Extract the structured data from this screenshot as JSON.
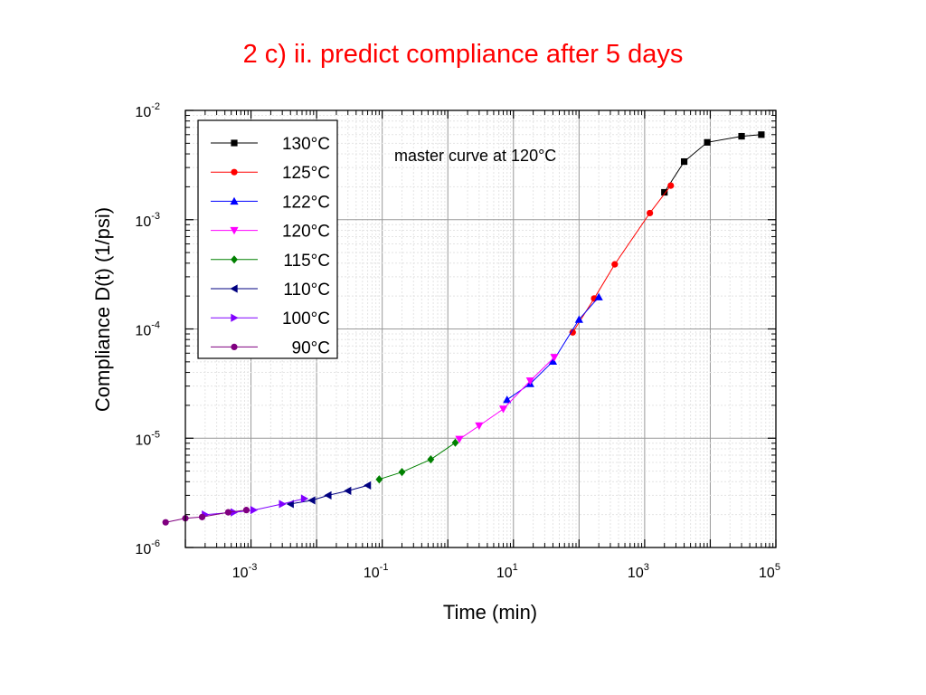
{
  "slide": {
    "title": "2 c) ii. predict compliance after 5 days"
  },
  "chart_data": {
    "type": "line",
    "title": "",
    "xlabel": "Time (min)",
    "ylabel": "Compliance D(t) (1/psi)",
    "xscale": "log",
    "yscale": "log",
    "xlim": [
      0.0001,
      100000
    ],
    "ylim": [
      1e-06,
      0.01
    ],
    "x_ticks": [
      {
        "base": "10",
        "exp": "-3",
        "value": 0.001
      },
      {
        "base": "10",
        "exp": "-1",
        "value": 0.1
      },
      {
        "base": "10",
        "exp": "1",
        "value": 10
      },
      {
        "base": "10",
        "exp": "3",
        "value": 1000
      },
      {
        "base": "10",
        "exp": "5",
        "value": 100000
      }
    ],
    "y_ticks": [
      {
        "base": "10",
        "exp": "-6",
        "value": 1e-06
      },
      {
        "base": "10",
        "exp": "-5",
        "value": 1e-05
      },
      {
        "base": "10",
        "exp": "-4",
        "value": 0.0001
      },
      {
        "base": "10",
        "exp": "-3",
        "value": 0.001
      },
      {
        "base": "10",
        "exp": "-2",
        "value": 0.01
      }
    ],
    "grid": true,
    "legend_position": "top-left",
    "annotation": "master curve at 120°C",
    "series": [
      {
        "name": "130°C",
        "color": "#000000",
        "marker": "square",
        "points": [
          [
            2000,
            0.00178
          ],
          [
            4000,
            0.0034
          ],
          [
            9000,
            0.0051
          ],
          [
            30000,
            0.0058
          ],
          [
            60000,
            0.006
          ]
        ]
      },
      {
        "name": "125°C",
        "color": "#ff0000",
        "marker": "circle",
        "points": [
          [
            80,
            9.3e-05
          ],
          [
            170,
            0.00019
          ],
          [
            350,
            0.00039
          ],
          [
            1200,
            0.00115
          ],
          [
            2500,
            0.00205
          ]
        ]
      },
      {
        "name": "122°C",
        "color": "#0000ff",
        "marker": "triangle-up",
        "points": [
          [
            8,
            2.25e-05
          ],
          [
            18,
            3.15e-05
          ],
          [
            40,
            5.05e-05
          ],
          [
            100,
            0.000122
          ],
          [
            200,
            0.000196
          ]
        ]
      },
      {
        "name": "120°C",
        "color": "#ff00ff",
        "marker": "triangle-down",
        "points": [
          [
            1.5,
            9.8e-06
          ],
          [
            3,
            1.3e-05
          ],
          [
            7,
            1.85e-05
          ],
          [
            18,
            3.35e-05
          ],
          [
            42,
            5.5e-05
          ]
        ]
      },
      {
        "name": "115°C",
        "color": "#008000",
        "marker": "diamond",
        "points": [
          [
            0.09,
            4.2e-06
          ],
          [
            0.2,
            4.9e-06
          ],
          [
            0.55,
            6.4e-06
          ],
          [
            1.3,
            9.1e-06
          ]
        ]
      },
      {
        "name": "110°C",
        "color": "#000080",
        "marker": "triangle-left",
        "points": [
          [
            0.004,
            2.5e-06
          ],
          [
            0.0085,
            2.7e-06
          ],
          [
            0.015,
            3e-06
          ],
          [
            0.03,
            3.3e-06
          ],
          [
            0.06,
            3.7e-06
          ]
        ]
      },
      {
        "name": "100°C",
        "color": "#8000ff",
        "marker": "triangle-right",
        "points": [
          [
            0.0002,
            2e-06
          ],
          [
            0.00055,
            2.1e-06
          ],
          [
            0.0011,
            2.2e-06
          ],
          [
            0.003,
            2.5e-06
          ],
          [
            0.0065,
            2.8e-06
          ]
        ]
      },
      {
        "name": "90°C",
        "color": "#800080",
        "marker": "circle",
        "points": [
          [
            5e-05,
            1.7e-06
          ],
          [
            0.0001,
            1.85e-06
          ],
          [
            0.00018,
            1.9e-06
          ],
          [
            0.00045,
            2.1e-06
          ],
          [
            0.00085,
            2.2e-06
          ]
        ]
      }
    ]
  }
}
